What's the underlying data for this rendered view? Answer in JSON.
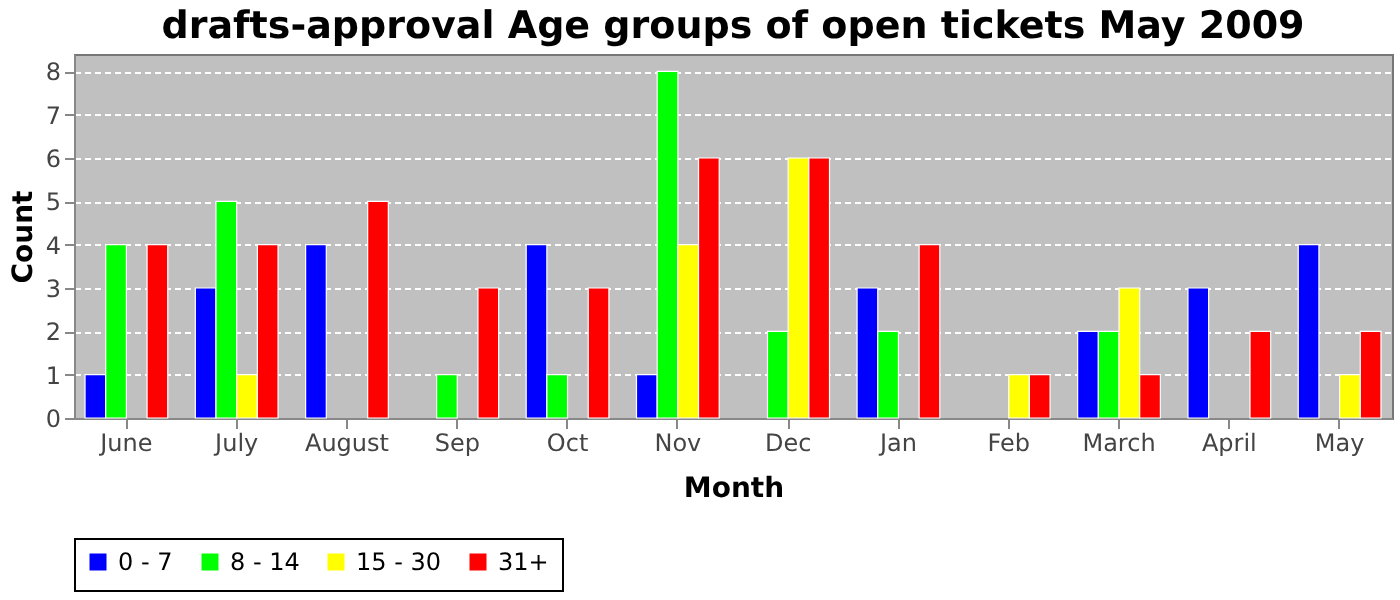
{
  "chart_data": {
    "type": "bar",
    "title": "drafts-approval Age groups of open tickets May 2009",
    "xlabel": "Month",
    "ylabel": "Count",
    "categories": [
      "June",
      "July",
      "August",
      "Sep",
      "Oct",
      "Nov",
      "Dec",
      "Jan",
      "Feb",
      "March",
      "April",
      "May"
    ],
    "series": [
      {
        "name": "0 - 7",
        "color": "#0000ff",
        "values": [
          1,
          3,
          4,
          null,
          4,
          1,
          null,
          3,
          null,
          2,
          3,
          4
        ]
      },
      {
        "name": "8 - 14",
        "color": "#00ff00",
        "values": [
          4,
          5,
          null,
          1,
          1,
          8,
          2,
          2,
          null,
          2,
          null,
          null
        ]
      },
      {
        "name": "15 - 30",
        "color": "#ffff00",
        "values": [
          null,
          1,
          null,
          null,
          null,
          4,
          6,
          null,
          1,
          3,
          null,
          1
        ]
      },
      {
        "name": "31+",
        "color": "#ff0000",
        "values": [
          4,
          4,
          5,
          3,
          3,
          6,
          6,
          4,
          1,
          1,
          2,
          2
        ]
      }
    ],
    "ylim": [
      0,
      8.4
    ],
    "yticks": [
      0,
      1,
      2,
      3,
      4,
      5,
      6,
      7,
      8
    ],
    "grid": "y",
    "legend": "bottom"
  }
}
